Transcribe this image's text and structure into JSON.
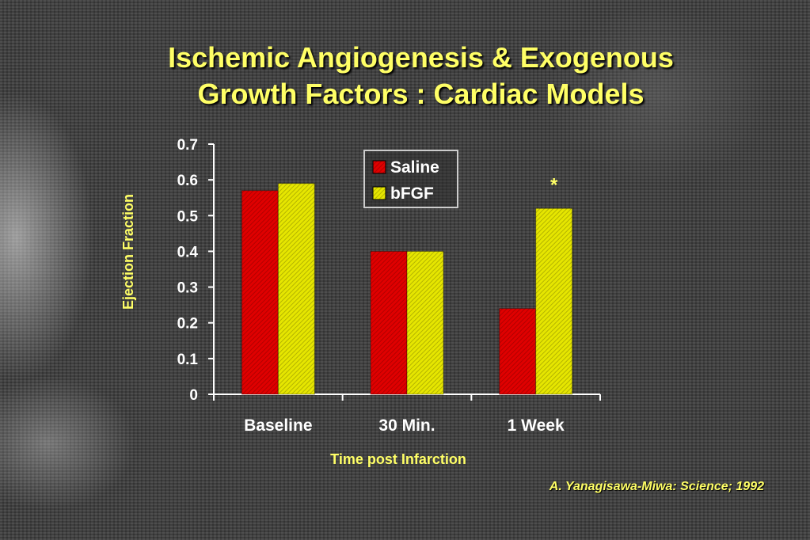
{
  "slide": {
    "title_line1": "Ischemic Angiogenesis & Exogenous",
    "title_line2": "Growth Factors : Cardiac Models",
    "citation": "A. Yanagisawa-Miwa:  Science; 1992"
  },
  "colors": {
    "title": "#ffff66",
    "saline": "#e00000",
    "bfgf": "#e6e600",
    "axis": "#ffffff"
  },
  "chart_data": {
    "type": "bar",
    "categories": [
      "Baseline",
      "30 Min.",
      "1 Week"
    ],
    "series": [
      {
        "name": "Saline",
        "values": [
          0.57,
          0.4,
          0.24
        ]
      },
      {
        "name": "bFGF",
        "values": [
          0.59,
          0.4,
          0.52
        ]
      }
    ],
    "xlabel": "Time post Infarction",
    "ylabel": "Ejection Fraction",
    "ylim": [
      0,
      0.7
    ],
    "yticks": [
      "0",
      "0.1",
      "0.2",
      "0.3",
      "0.4",
      "0.5",
      "0.6",
      "0.7"
    ],
    "grid": false,
    "legend_position": "top-center",
    "annotations": [
      {
        "text": "*",
        "category": "1 Week",
        "series": "bFGF"
      }
    ]
  }
}
